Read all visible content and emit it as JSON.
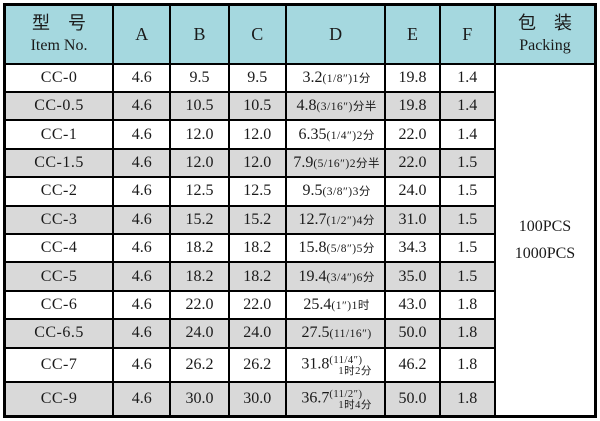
{
  "table": {
    "header": {
      "item_no_cn": "型　号",
      "item_no_en": "Item No.",
      "col_a": "A",
      "col_b": "B",
      "col_c": "C",
      "col_d": "D",
      "col_e": "E",
      "col_f": "F",
      "packing_cn": "包　装",
      "packing_en": "Packing"
    },
    "rows": [
      {
        "item": "CC-0",
        "a": "4.6",
        "b": "9.5",
        "c": "9.5",
        "d_main": "3.2",
        "d_note": "(1/8″)1分",
        "d_note2": "",
        "e": "19.8",
        "f": "1.4"
      },
      {
        "item": "CC-0.5",
        "a": "4.6",
        "b": "10.5",
        "c": "10.5",
        "d_main": "4.8",
        "d_note": "(3/16″)分半",
        "d_note2": "",
        "e": "19.8",
        "f": "1.4"
      },
      {
        "item": "CC-1",
        "a": "4.6",
        "b": "12.0",
        "c": "12.0",
        "d_main": "6.35",
        "d_note": "(1/4″)2分",
        "d_note2": "",
        "e": "22.0",
        "f": "1.4"
      },
      {
        "item": "CC-1.5",
        "a": "4.6",
        "b": "12.0",
        "c": "12.0",
        "d_main": "7.9",
        "d_note": "(5/16″)2分半",
        "d_note2": "",
        "e": "22.0",
        "f": "1.5"
      },
      {
        "item": "CC-2",
        "a": "4.6",
        "b": "12.5",
        "c": "12.5",
        "d_main": "9.5",
        "d_note": "(3/8″)3分",
        "d_note2": "",
        "e": "24.0",
        "f": "1.5"
      },
      {
        "item": "CC-3",
        "a": "4.6",
        "b": "15.2",
        "c": "15.2",
        "d_main": "12.7",
        "d_note": "(1/2″)4分",
        "d_note2": "",
        "e": "31.0",
        "f": "1.5"
      },
      {
        "item": "CC-4",
        "a": "4.6",
        "b": "18.2",
        "c": "18.2",
        "d_main": "15.8",
        "d_note": "(5/8″)5分",
        "d_note2": "",
        "e": "34.3",
        "f": "1.5"
      },
      {
        "item": "CC-5",
        "a": "4.6",
        "b": "18.2",
        "c": "18.2",
        "d_main": "19.4",
        "d_note": "(3/4″)6分",
        "d_note2": "",
        "e": "35.0",
        "f": "1.5"
      },
      {
        "item": "CC-6",
        "a": "4.6",
        "b": "22.0",
        "c": "22.0",
        "d_main": "25.4",
        "d_note": "(1″)1时",
        "d_note2": "",
        "e": "43.0",
        "f": "1.8"
      },
      {
        "item": "CC-6.5",
        "a": "4.6",
        "b": "24.0",
        "c": "24.0",
        "d_main": "27.5",
        "d_note": "(11/16″)",
        "d_note2": "",
        "e": "50.0",
        "f": "1.8"
      },
      {
        "item": "CC-7",
        "a": "4.6",
        "b": "26.2",
        "c": "26.2",
        "d_main": "31.8",
        "d_note": "(11/4″)",
        "d_note2": "1时2分",
        "e": "46.2",
        "f": "1.8"
      },
      {
        "item": "CC-9",
        "a": "4.6",
        "b": "30.0",
        "c": "30.0",
        "d_main": "36.7",
        "d_note": "(11/2″)",
        "d_note2": "1时4分",
        "e": "50.0",
        "f": "1.8"
      }
    ],
    "packing_lines": [
      "100PCS",
      "1000PCS"
    ]
  },
  "colors": {
    "header_bg": "#a5d8df",
    "row_alt_bg": "#d9d9d9",
    "border_color": "#000000",
    "text_color": "#1a1a1a"
  }
}
